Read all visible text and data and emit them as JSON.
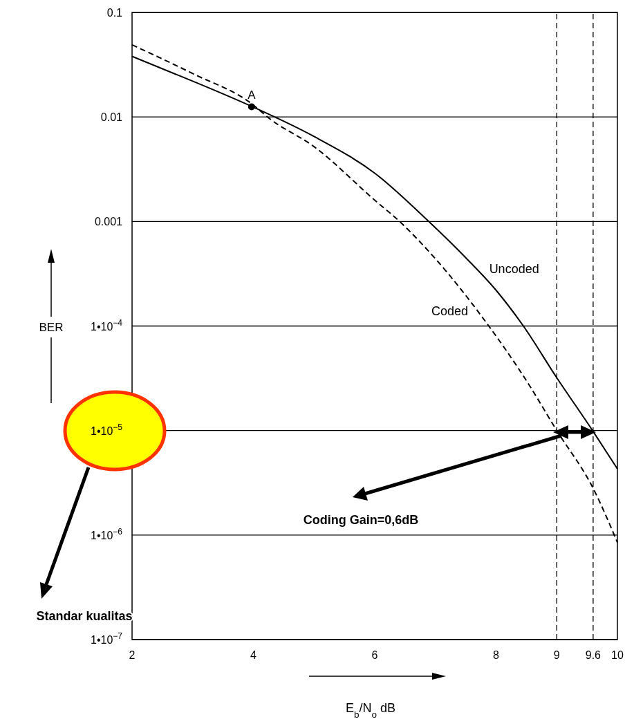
{
  "chart_data": {
    "type": "line",
    "ylabel": "BER",
    "xlabel": "E$_{b}$/N$_{o}$ dB",
    "xlim": [
      2,
      10
    ],
    "xticks": [
      2,
      4,
      6,
      8,
      9,
      9.6,
      10
    ],
    "ylim": [
      1e-07,
      0.1
    ],
    "log": "y",
    "grid": "y",
    "marker": "none",
    "yticks": [
      {
        "value": 1e-07,
        "label": "1•10$^{−7}$"
      },
      {
        "value": 1e-06,
        "label": "1•10$^{−6}$"
      },
      {
        "value": 1e-05,
        "label": "1•10$^{−5}$"
      },
      {
        "value": 0.0001,
        "label": "1•10$^{−4}$"
      },
      0.001,
      0.01,
      0.1
    ],
    "series": [
      {
        "name": "Uncoded",
        "color": "#000000",
        "line_style": "solid",
        "x": [
          2,
          3,
          4,
          5,
          6,
          6.89,
          7.5,
          8,
          8.45,
          9,
          9.59,
          10
        ],
        "values": [
          0.038,
          0.022,
          0.0124,
          0.0065,
          0.0029,
          0.001,
          0.00045,
          0.00022,
          0.0001,
          3.2e-05,
          1e-05,
          4.3e-06
        ]
      },
      {
        "name": "Coded",
        "color": "#000000",
        "line_style": "dashed",
        "x": [
          2,
          3,
          4,
          4.25,
          5,
          6,
          6.41,
          7,
          7.88,
          8.5,
          9,
          9.6,
          10
        ],
        "values": [
          0.049,
          0.026,
          0.013,
          0.0098,
          0.0052,
          0.0016,
          0.001,
          0.00044,
          0.0001,
          3e-05,
          1e-05,
          2.8e-06,
          8.5e-07
        ]
      },
      {
        "type": "scatter",
        "color": "#000000",
        "marker": "circle",
        "x": [
          3.97
        ],
        "values": [
          0.0125
        ]
      }
    ],
    "ref_lines": [
      {
        "axis": "x",
        "value": 9,
        "line_style": "dashed",
        "color": "#000000"
      },
      {
        "axis": "x",
        "value": 9.6,
        "line_style": "dashed",
        "color": "#000000"
      }
    ],
    "annotations": [
      {
        "text": "A",
        "x": 3.97,
        "y": 0.0125
      },
      "Coding Gain=0,6dB",
      "Standar kualitas"
    ]
  }
}
